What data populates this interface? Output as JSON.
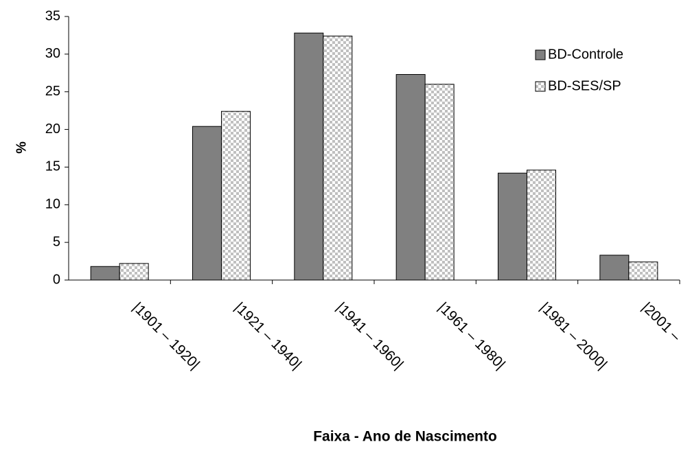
{
  "chart_data": {
    "type": "bar",
    "ylabel": "%",
    "xlabel": "Faixa - Ano de Nascimento",
    "categories": [
      "|1901 – 1920|",
      "|1921 – 1940|",
      "|1941 – 1960|",
      "|1961 – 1980|",
      "|1981 – 2000|",
      "|2001 –"
    ],
    "series": [
      {
        "name": "BD-Controle",
        "color": "#808080",
        "values": [
          1.8,
          20.4,
          32.8,
          27.3,
          14.2,
          3.3
        ]
      },
      {
        "name": "BD-SES/SP",
        "color": "#c0c0c0",
        "pattern": "checker",
        "values": [
          2.2,
          22.4,
          32.4,
          26.0,
          14.6,
          2.4
        ]
      }
    ],
    "ylim": [
      0,
      35
    ],
    "yticks": [
      0,
      5,
      10,
      15,
      20,
      25,
      30,
      35
    ],
    "legend": "upper right"
  }
}
